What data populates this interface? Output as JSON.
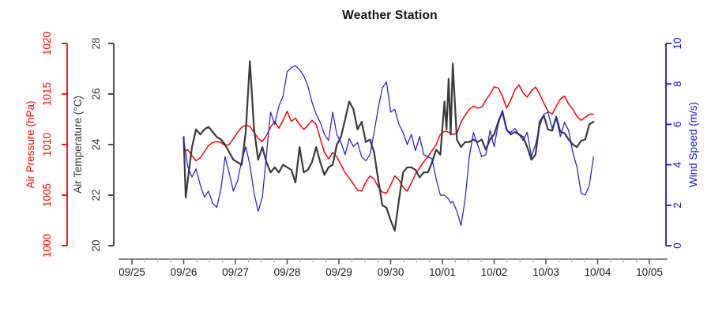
{
  "chart_data": {
    "type": "line",
    "title": "Weather Station",
    "x_axis": {
      "labels": [
        "09/25",
        "09/26",
        "09/27",
        "09/28",
        "09/29",
        "09/30",
        "10/01",
        "10/02",
        "10/03",
        "10/04",
        "10/05"
      ],
      "minor_ticks_per_day": 4
    },
    "axes": [
      {
        "id": "pressure",
        "label": "Air Pressure (hPa)",
        "color": "#ff0000",
        "side": "left-outer",
        "range": [
          1000,
          1020
        ],
        "ticks": [
          1000,
          1005,
          1010,
          1015,
          1020
        ]
      },
      {
        "id": "temperature",
        "label": "Air Temperature (°C)",
        "color": "#3a3a3a",
        "side": "left-inner",
        "range": [
          20,
          28
        ],
        "ticks": [
          20,
          22,
          24,
          26,
          28
        ]
      },
      {
        "id": "wind",
        "label": "Wind Speed (m/s)",
        "color": "#1414dd",
        "side": "right",
        "range": [
          0,
          10
        ],
        "ticks": [
          0,
          2,
          4,
          6,
          8,
          10
        ]
      }
    ],
    "x_days_since_0925": [
      1.0,
      1.04,
      1.08,
      1.16,
      1.24,
      1.32,
      1.4,
      1.48,
      1.56,
      1.64,
      1.72,
      1.8,
      1.88,
      1.96,
      2.04,
      2.12,
      2.2,
      2.28,
      2.36,
      2.44,
      2.52,
      2.6,
      2.68,
      2.76,
      2.84,
      2.92,
      3.0,
      3.08,
      3.16,
      3.24,
      3.32,
      3.4,
      3.48,
      3.56,
      3.64,
      3.72,
      3.8,
      3.88,
      3.96,
      4.04,
      4.12,
      4.2,
      4.28,
      4.36,
      4.44,
      4.52,
      4.6,
      4.68,
      4.76,
      4.84,
      4.92,
      5.0,
      5.08,
      5.16,
      5.24,
      5.32,
      5.4,
      5.48,
      5.56,
      5.64,
      5.72,
      5.8,
      5.88,
      5.96,
      6.04,
      6.08,
      6.12,
      6.16,
      6.2,
      6.28,
      6.36,
      6.44,
      6.52,
      6.6,
      6.68,
      6.76,
      6.84,
      6.92,
      7.0,
      7.08,
      7.16,
      7.24,
      7.32,
      7.4,
      7.48,
      7.56,
      7.64,
      7.72,
      7.8,
      7.88,
      7.96,
      8.04,
      8.12,
      8.2,
      8.28,
      8.36,
      8.44,
      8.52,
      8.6,
      8.68,
      8.76,
      8.84,
      8.92
    ],
    "series": [
      {
        "name": "Air Pressure",
        "axis": "pressure",
        "color": "#ff0000",
        "width": 1.5,
        "values": [
          1009.3,
          1009.4,
          1009.5,
          1008.9,
          1008.4,
          1008.7,
          1009.3,
          1009.9,
          1010.2,
          1010.3,
          1010.2,
          1009.9,
          1010.0,
          1010.6,
          1011.2,
          1011.7,
          1011.9,
          1011.8,
          1011.2,
          1010.6,
          1010.3,
          1010.9,
          1011.7,
          1012.3,
          1011.6,
          1012.4,
          1013.3,
          1012.3,
          1012.6,
          1012.0,
          1011.5,
          1011.9,
          1012.4,
          1012.0,
          1010.6,
          1009.2,
          1008.6,
          1009.2,
          1008.8,
          1008.0,
          1007.2,
          1006.7,
          1006.1,
          1005.5,
          1005.4,
          1006.3,
          1006.9,
          1006.6,
          1005.8,
          1005.3,
          1005.2,
          1006.0,
          1006.9,
          1006.5,
          1005.8,
          1005.4,
          1006.2,
          1007.1,
          1007.7,
          1008.3,
          1008.8,
          1009.4,
          1010.0,
          1011.0,
          1011.3,
          1011.3,
          1011.2,
          1011.1,
          1011.0,
          1011.1,
          1012.2,
          1012.9,
          1013.5,
          1013.8,
          1013.6,
          1013.7,
          1014.4,
          1015.0,
          1015.7,
          1015.6,
          1014.8,
          1013.6,
          1014.4,
          1015.4,
          1015.9,
          1015.1,
          1014.7,
          1015.3,
          1015.7,
          1015.0,
          1014.1,
          1013.3,
          1013.0,
          1013.8,
          1014.5,
          1014.8,
          1014.0,
          1013.5,
          1012.8,
          1012.4,
          1012.7,
          1013.0,
          1013.0
        ]
      },
      {
        "name": "Air Temperature",
        "axis": "temperature",
        "color": "#3a3a3a",
        "width": 2.2,
        "values": [
          24.3,
          21.9,
          22.6,
          23.9,
          24.6,
          24.4,
          24.6,
          24.7,
          24.5,
          24.3,
          24.2,
          24.0,
          23.7,
          23.4,
          23.3,
          23.2,
          24.5,
          27.3,
          24.6,
          23.4,
          23.9,
          23.3,
          22.9,
          23.1,
          22.9,
          23.2,
          23.1,
          23.0,
          22.5,
          23.9,
          22.9,
          23.0,
          23.3,
          23.9,
          23.3,
          22.8,
          23.1,
          23.2,
          24.0,
          24.3,
          25.0,
          25.7,
          25.4,
          24.6,
          24.9,
          24.1,
          24.2,
          23.7,
          22.6,
          21.6,
          21.5,
          21.0,
          20.6,
          21.8,
          22.9,
          23.1,
          23.1,
          23.0,
          22.7,
          22.9,
          22.9,
          23.3,
          23.8,
          23.6,
          25.7,
          24.6,
          26.6,
          24.4,
          27.2,
          24.2,
          23.9,
          24.1,
          24.1,
          24.2,
          24.1,
          24.2,
          23.8,
          24.2,
          24.4,
          24.9,
          25.3,
          24.6,
          24.4,
          24.5,
          24.4,
          24.3,
          23.9,
          23.4,
          23.6,
          24.9,
          25.15,
          24.6,
          24.55,
          25.1,
          24.5,
          24.45,
          24.2,
          24.0,
          23.9,
          24.15,
          24.2,
          24.8,
          24.9
        ]
      },
      {
        "name": "Wind Speed",
        "axis": "wind",
        "color": "#1a1ae0",
        "width": 1.2,
        "values": [
          5.2,
          4.6,
          3.9,
          3.4,
          3.8,
          3.0,
          2.4,
          2.7,
          2.1,
          1.9,
          2.8,
          4.4,
          3.6,
          2.7,
          3.2,
          4.2,
          4.9,
          4.0,
          2.6,
          1.7,
          2.4,
          4.5,
          6.6,
          6.0,
          6.9,
          7.4,
          8.6,
          8.8,
          8.9,
          8.7,
          8.4,
          7.9,
          7.1,
          6.5,
          6.1,
          5.5,
          5.2,
          6.6,
          5.5,
          5.1,
          4.5,
          5.3,
          4.9,
          5.1,
          4.4,
          4.2,
          4.5,
          5.6,
          6.8,
          7.8,
          8.1,
          6.6,
          6.75,
          6.0,
          5.6,
          5.0,
          5.5,
          4.7,
          5.4,
          4.5,
          4.4,
          4.3,
          3.3,
          2.5,
          2.5,
          2.4,
          2.3,
          2.1,
          2.2,
          1.7,
          1.0,
          2.3,
          4.4,
          5.6,
          5.0,
          4.4,
          4.5,
          5.7,
          4.9,
          6.0,
          6.7,
          5.7,
          5.6,
          5.8,
          5.5,
          5.2,
          5.6,
          4.4,
          5.0,
          5.9,
          6.5,
          6.6,
          5.8,
          6.3,
          5.4,
          6.1,
          5.7,
          4.6,
          3.9,
          2.6,
          2.5,
          3.0,
          4.4
        ]
      }
    ]
  }
}
